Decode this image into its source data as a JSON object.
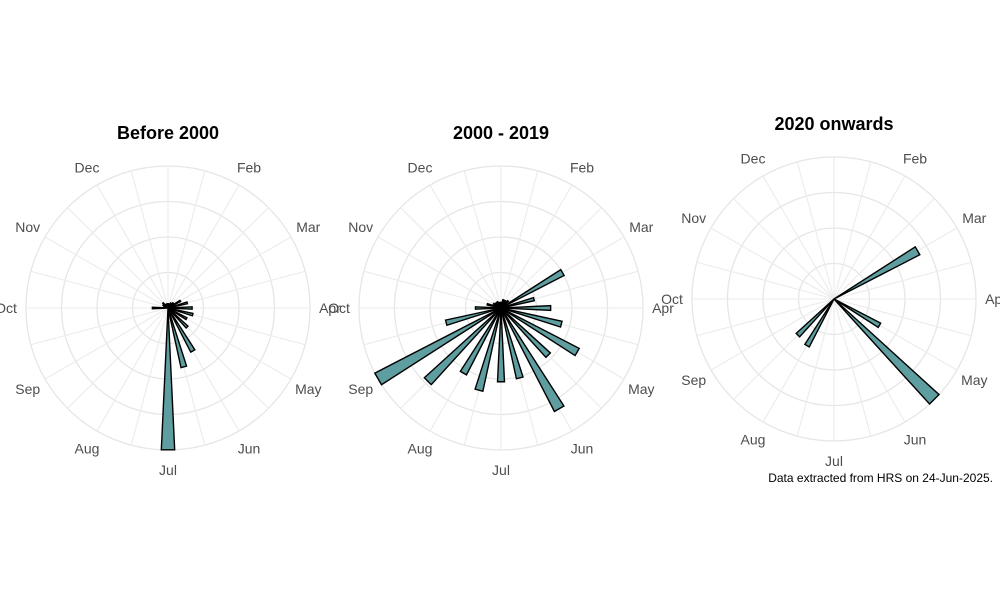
{
  "caption": "Data extracted from HRS on 24-Jun-2025.",
  "colors": {
    "bar_fill": "#5f9ea0",
    "bar_stroke": "#000000",
    "grid": "#e6e6e6",
    "label": "#4d4d4d"
  },
  "chart_data": [
    {
      "type": "polar-bar",
      "title": "Before 2000",
      "theta_labels": [
        "Jan",
        "Feb",
        "Mar",
        "Apr",
        "May",
        "Jun",
        "Jul",
        "Aug",
        "Sep",
        "Oct",
        "Nov",
        "Dec"
      ],
      "theta_range": [
        1,
        13
      ],
      "r_range": [
        0,
        1
      ],
      "grid": true,
      "x": [
        1.0,
        1.5,
        2.0,
        2.5,
        3.0,
        3.5,
        4.0,
        4.5,
        5.0,
        5.5,
        6.0,
        6.5,
        7.0,
        7.5,
        8.0,
        8.5,
        9.0,
        9.5,
        10.0,
        10.5,
        11.0,
        11.5,
        12.0,
        12.5
      ],
      "values": [
        0.03,
        0.03,
        0.04,
        0.05,
        0.1,
        0.14,
        0.17,
        0.18,
        0.15,
        0.19,
        0.35,
        0.43,
        1.0,
        0.0,
        0.0,
        0.0,
        0.0,
        0.0,
        0.11,
        0.03,
        0.04,
        0.05,
        0.03,
        0.03
      ]
    },
    {
      "type": "polar-bar",
      "title": "2000 - 2019",
      "theta_labels": [
        "Jan",
        "Feb",
        "Mar",
        "Apr",
        "May",
        "Jun",
        "Jul",
        "Aug",
        "Sep",
        "Oct",
        "Nov",
        "Dec"
      ],
      "theta_range": [
        1,
        13
      ],
      "r_range": [
        0,
        1
      ],
      "grid": true,
      "x": [
        1.0,
        1.5,
        2.0,
        2.5,
        3.0,
        3.5,
        4.0,
        4.5,
        5.0,
        5.5,
        6.0,
        6.5,
        7.0,
        7.5,
        8.0,
        8.5,
        9.0,
        9.5,
        10.0,
        10.5,
        11.0,
        11.5,
        12.0,
        12.5
      ],
      "values": [
        0.04,
        0.06,
        0.06,
        0.07,
        0.5,
        0.24,
        0.35,
        0.44,
        0.62,
        0.47,
        0.82,
        0.51,
        0.52,
        0.6,
        0.53,
        0.73,
        1.0,
        0.4,
        0.18,
        0.1,
        0.06,
        0.05,
        0.05,
        0.04
      ]
    },
    {
      "type": "polar-bar",
      "title": "2020 onwards",
      "theta_labels": [
        "Jan",
        "Feb",
        "Mar",
        "Apr",
        "May",
        "Jun",
        "Jul",
        "Aug",
        "Sep",
        "Oct",
        "Nov",
        "Dec"
      ],
      "theta_range": [
        1,
        13
      ],
      "r_range": [
        0,
        1
      ],
      "grid": true,
      "x": [
        1.0,
        1.5,
        2.0,
        2.5,
        3.0,
        3.5,
        4.0,
        4.5,
        5.0,
        5.5,
        6.0,
        6.5,
        7.0,
        7.5,
        8.0,
        8.5,
        9.0,
        9.5,
        10.0,
        10.5,
        11.0,
        11.5,
        12.0,
        12.5
      ],
      "values": [
        0.0,
        0.0,
        0.0,
        0.0,
        0.68,
        0.0,
        0.0,
        0.0,
        0.37,
        1.0,
        0.0,
        0.0,
        0.0,
        0.0,
        0.38,
        0.36,
        0.0,
        0.0,
        0.0,
        0.0,
        0.0,
        0.0,
        0.0,
        0.0
      ]
    }
  ]
}
